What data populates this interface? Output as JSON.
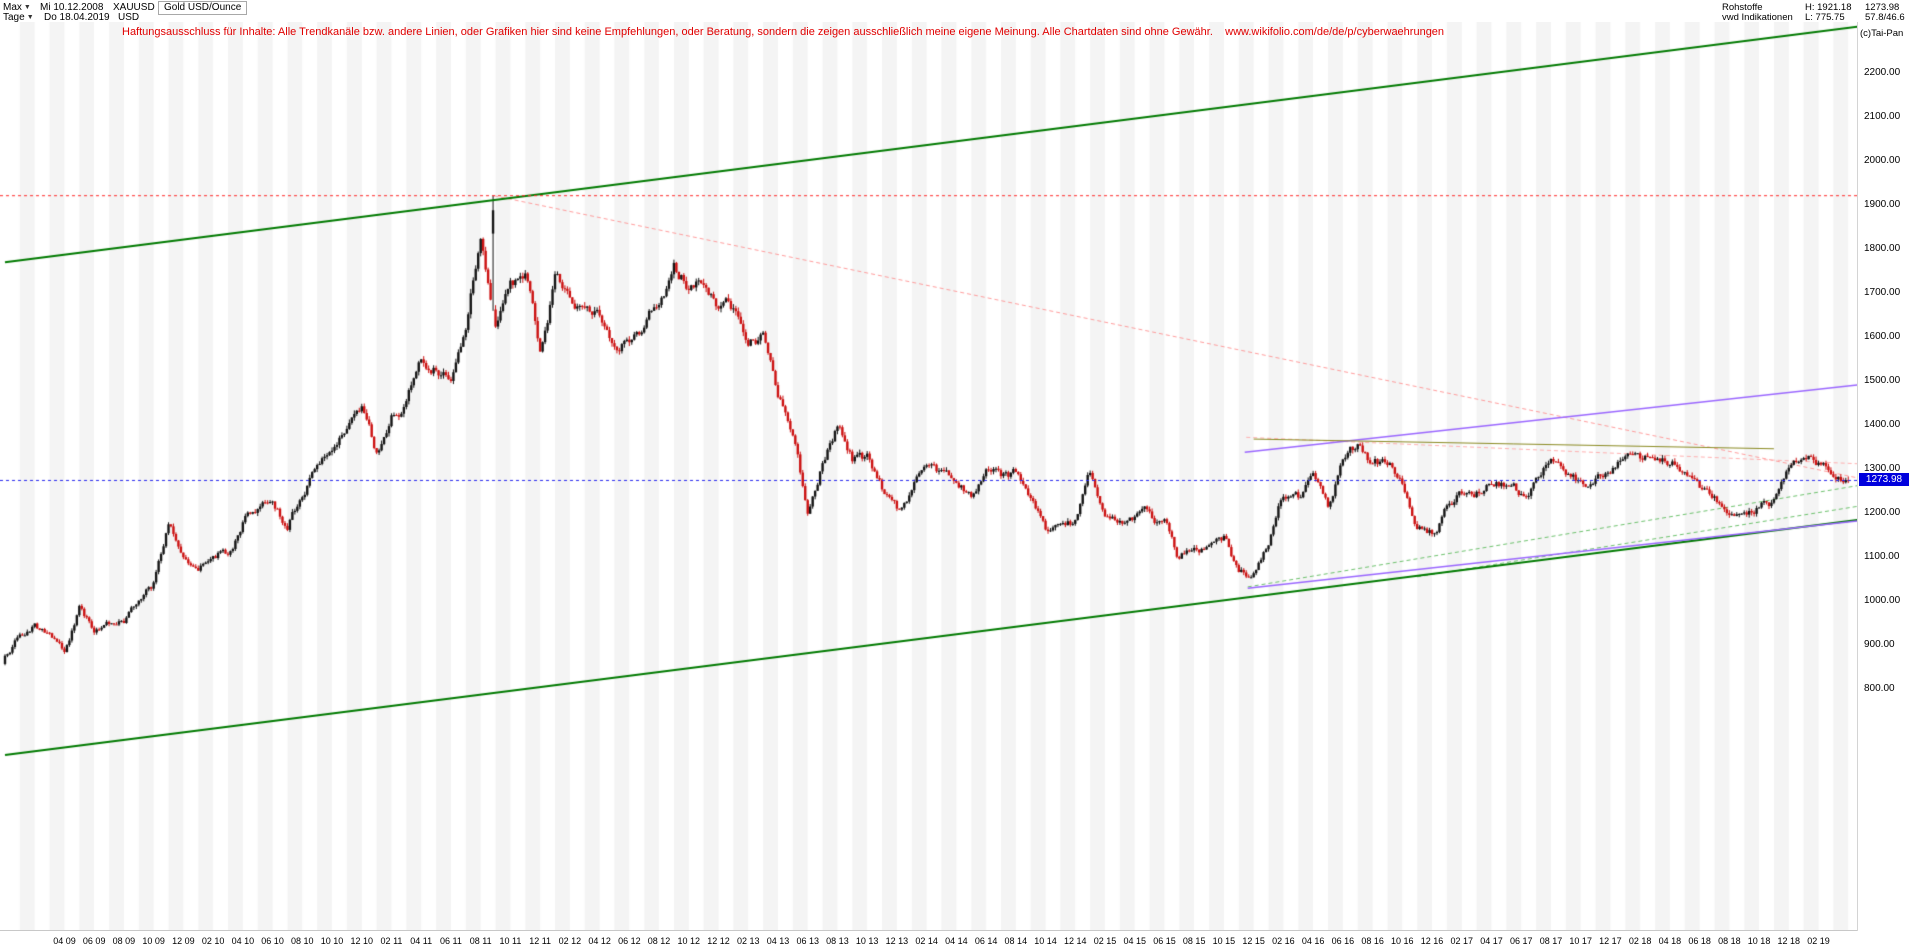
{
  "header": {
    "range_selector": "Max",
    "range_start_date": "Mi 10.12.2008",
    "period_selector": "Tage",
    "current_date": "Do 18.04.2019",
    "symbol": "XAUUSD",
    "currency": "USD",
    "instrument_title": "Gold USD/Ounce",
    "category": "Rohstoffe",
    "data_source": "vwd Indikationen",
    "period_high": "H: 1921.18",
    "period_low": "L: 775.75",
    "last_price": "1273.98",
    "indicator_values": "57.8/46.6",
    "copyright": "(c)Tai-Pan"
  },
  "disclaimer": {
    "text": "Haftungsausschluss für Inhalte: Alle Trendkanäle bzw. andere Linien, oder Grafiken hier sind keine Empfehlungen, oder Beratung, sondern die zeigen ausschließlich meine eigene Meinung. Alle Chartdaten sind ohne Gewähr.",
    "url": "www.wikifolio.com/de/de/p/cyberwaehrungen"
  },
  "chart_data": {
    "type": "candlestick",
    "title": "Gold USD/Ounce",
    "symbol": "XAUUSD",
    "start_date": "10.12.2008",
    "end_date": "18.04.2019",
    "period_high": 1921.18,
    "period_low": 775.75,
    "last": 1273.98,
    "y_axis": {
      "max_label": 2200,
      "min_label": 800,
      "step": 100,
      "labels": [
        "2200.00",
        "2100.00",
        "2000.00",
        "1900.00",
        "1800.00",
        "1700.00",
        "1600.00",
        "1500.00",
        "1400.00",
        "1300.00",
        "1200.00",
        "1100.00",
        "1000.00",
        "900.00",
        "800.00"
      ]
    },
    "x_axis": {
      "labels": [
        "04 09",
        "06 09",
        "08 09",
        "10 09",
        "12 09",
        "02 10",
        "04 10",
        "06 10",
        "08 10",
        "10 10",
        "12 10",
        "02 11",
        "04 11",
        "06 11",
        "08 11",
        "10 11",
        "12 11",
        "02 12",
        "04 12",
        "06 12",
        "08 12",
        "10 12",
        "12 12",
        "02 13",
        "04 13",
        "06 13",
        "08 13",
        "10 13",
        "12 13",
        "02 14",
        "04 14",
        "06 14",
        "08 14",
        "10 14",
        "12 14",
        "02 15",
        "04 15",
        "06 15",
        "08 15",
        "10 15",
        "12 15",
        "02 16",
        "04 16",
        "06 16",
        "08 16",
        "10 16",
        "12 16",
        "02 17",
        "04 17",
        "06 17",
        "08 17",
        "10 17",
        "12 17",
        "02 18",
        "04 18",
        "06 18",
        "08 18",
        "10 18",
        "12 18",
        "02 19"
      ]
    },
    "monthly_close": [
      870,
      919,
      952,
      916,
      883,
      975,
      934,
      953,
      953,
      1008,
      1040,
      1175,
      1096,
      1083,
      1118,
      1113,
      1179,
      1215,
      1244,
      1169,
      1246,
      1307,
      1346,
      1385,
      1421,
      1327,
      1411,
      1439,
      1556,
      1536,
      1502,
      1628,
      1825,
      1620,
      1722,
      1746,
      1564,
      1737,
      1696,
      1669,
      1664,
      1558,
      1598,
      1615,
      1692,
      1772,
      1720,
      1714,
      1675,
      1661,
      1588,
      1597,
      1469,
      1394,
      1192,
      1312,
      1395,
      1327,
      1323,
      1253,
      1205,
      1251,
      1326,
      1291,
      1288,
      1250,
      1315,
      1285,
      1287,
      1216,
      1164,
      1182,
      1184,
      1283,
      1213,
      1184,
      1184,
      1191,
      1172,
      1095,
      1135,
      1115,
      1142,
      1065,
      1061,
      1118,
      1234,
      1232,
      1292,
      1215,
      1322,
      1351,
      1309,
      1316,
      1277,
      1173,
      1152,
      1210,
      1248,
      1249,
      1268,
      1269,
      1242,
      1269,
      1321,
      1280,
      1271,
      1275,
      1303,
      1345,
      1318,
      1325,
      1315,
      1298,
      1253,
      1224,
      1201,
      1192,
      1215,
      1222,
      1282,
      1321,
      1313,
      1292,
      1274
    ],
    "candle_colors": {
      "up": "#141414",
      "down": "#cc1111"
    },
    "reference_lines": [
      {
        "name": "all-time-high-line",
        "price": 1921.18,
        "color": "#ff2a2a",
        "style": "dashed"
      },
      {
        "name": "last-price-line",
        "price": 1273.98,
        "color": "#2626ee",
        "style": "dashed"
      }
    ],
    "trendlines": [
      {
        "name": "green-channel-top",
        "layer": "over",
        "color": "#007a00",
        "style": "solid",
        "width": 2,
        "from": {
          "t": 0,
          "price": 1770
        },
        "to": {
          "t": 124.6,
          "price": 2305
        }
      },
      {
        "name": "green-channel-bottom",
        "layer": "over",
        "color": "#007a00",
        "style": "solid",
        "width": 2,
        "from": {
          "t": 0,
          "price": 650
        },
        "to": {
          "t": 124.6,
          "price": 1184
        }
      },
      {
        "name": "downtrend-from-high",
        "layer": "under",
        "color": "#ff9c9c",
        "style": "dashed",
        "width": 1,
        "from": {
          "t": 32.9,
          "price": 1921
        },
        "to": {
          "t": 124.6,
          "price": 1280
        }
      },
      {
        "name": "resistance-2016-2018",
        "layer": "under",
        "color": "#ffb0b0",
        "style": "dashed",
        "width": 1,
        "from": {
          "t": 83.5,
          "price": 1372
        },
        "to": {
          "t": 124.6,
          "price": 1312
        }
      },
      {
        "name": "green-dashed-support-1",
        "layer": "under",
        "color": "#6cc26c",
        "style": "dashed",
        "width": 1,
        "from": {
          "t": 83.6,
          "price": 1032
        },
        "to": {
          "t": 124.6,
          "price": 1262
        }
      },
      {
        "name": "green-dashed-support-2",
        "layer": "under",
        "color": "#6cc26c",
        "style": "dashed",
        "width": 1,
        "from": {
          "t": 95,
          "price": 1055
        },
        "to": {
          "t": 124.6,
          "price": 1215
        }
      },
      {
        "name": "violet-channel-top",
        "layer": "over",
        "color": "#9a66ff",
        "style": "solid",
        "width": 1.5,
        "from": {
          "t": 83.4,
          "price": 1338
        },
        "to": {
          "t": 124.6,
          "price": 1491
        }
      },
      {
        "name": "violet-channel-bottom",
        "layer": "over",
        "color": "#9a66ff",
        "style": "solid",
        "width": 1.5,
        "from": {
          "t": 83.6,
          "price": 1029
        },
        "to": {
          "t": 124.6,
          "price": 1182
        }
      },
      {
        "name": "olive-resistance",
        "layer": "over",
        "color": "#8a8a20",
        "style": "solid",
        "width": 1,
        "from": {
          "t": 84,
          "price": 1368
        },
        "to": {
          "t": 119,
          "price": 1346
        }
      }
    ]
  }
}
